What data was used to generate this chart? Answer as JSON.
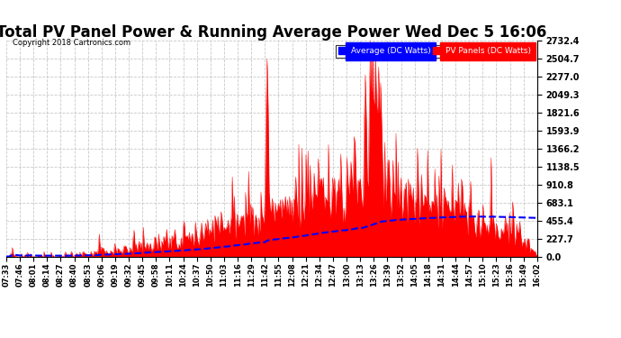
{
  "title": "Total PV Panel Power & Running Average Power Wed Dec 5 16:06",
  "copyright": "Copyright 2018 Cartronics.com",
  "legend_labels": [
    "Average (DC Watts)",
    "PV Panels (DC Watts)"
  ],
  "y_ticks": [
    0.0,
    227.7,
    455.4,
    683.1,
    910.8,
    1138.5,
    1366.2,
    1593.9,
    1821.6,
    2049.3,
    2277.0,
    2504.7,
    2732.4
  ],
  "y_max": 2732.4,
  "background_color": "#ffffff",
  "grid_color": "#bbbbbb",
  "pv_color": "#ff0000",
  "avg_color": "#0000ff",
  "title_fontsize": 12,
  "tick_labels": [
    "07:33",
    "07:46",
    "08:01",
    "08:14",
    "08:27",
    "08:40",
    "08:53",
    "09:06",
    "09:19",
    "09:32",
    "09:45",
    "09:58",
    "10:11",
    "10:24",
    "10:37",
    "10:50",
    "11:03",
    "11:16",
    "11:29",
    "11:42",
    "11:55",
    "12:08",
    "12:21",
    "12:34",
    "12:47",
    "13:00",
    "13:13",
    "13:26",
    "13:39",
    "13:52",
    "14:05",
    "14:18",
    "14:31",
    "14:44",
    "14:57",
    "15:10",
    "15:23",
    "15:36",
    "15:49",
    "16:02"
  ],
  "n_points": 520
}
